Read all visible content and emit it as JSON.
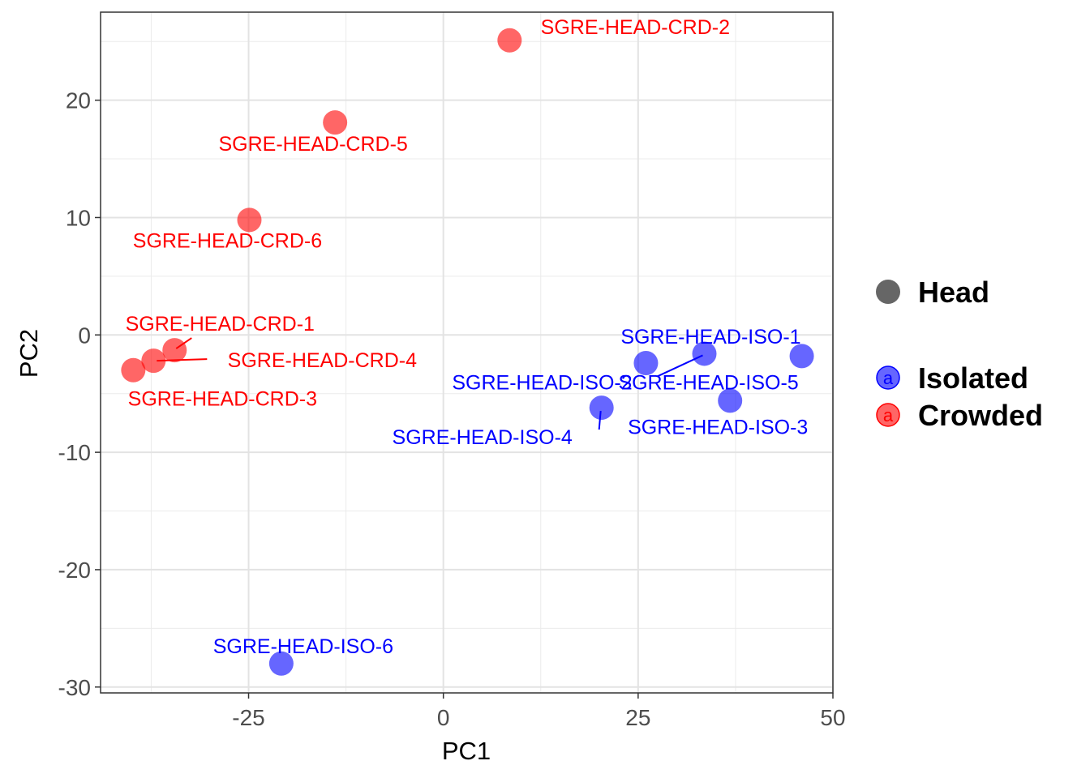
{
  "chart_data": {
    "type": "scatter",
    "xlabel": "PC1",
    "ylabel": "PC2",
    "xlim": [
      -44,
      50
    ],
    "ylim": [
      -30.5,
      27.5
    ],
    "x_ticks": [
      -25,
      0,
      25,
      50
    ],
    "y_ticks": [
      -30,
      -20,
      -10,
      0,
      10,
      20
    ],
    "grid": true,
    "legend_position": "right",
    "shape_legend": {
      "label": "Head",
      "color": "#666666"
    },
    "series": [
      {
        "name": "Isolated",
        "color": "#0000ff",
        "label_color": "#0000ff",
        "points": [
          {
            "label": "SGRE-HEAD-ISO-1",
            "x": 26.0,
            "y": -2.4
          },
          {
            "label": "SGRE-HEAD-ISO-2",
            "x": 33.5,
            "y": -1.6
          },
          {
            "label": "SGRE-HEAD-ISO-3",
            "x": 36.8,
            "y": -5.6
          },
          {
            "label": "SGRE-HEAD-ISO-4",
            "x": 20.3,
            "y": -6.2
          },
          {
            "label": "SGRE-HEAD-ISO-5",
            "x": 46.0,
            "y": -1.8
          },
          {
            "label": "SGRE-HEAD-ISO-6",
            "x": -20.8,
            "y": -28.0
          }
        ]
      },
      {
        "name": "Crowded",
        "color": "#ff0000",
        "label_color": "#ff0000",
        "points": [
          {
            "label": "SGRE-HEAD-CRD-1",
            "x": -34.5,
            "y": -1.3
          },
          {
            "label": "SGRE-HEAD-CRD-2",
            "x": 8.5,
            "y": 25.1
          },
          {
            "label": "SGRE-HEAD-CRD-3",
            "x": -39.8,
            "y": -3.0
          },
          {
            "label": "SGRE-HEAD-CRD-4",
            "x": -37.2,
            "y": -2.2
          },
          {
            "label": "SGRE-HEAD-CRD-5",
            "x": -13.9,
            "y": 18.1
          },
          {
            "label": "SGRE-HEAD-CRD-6",
            "x": -24.9,
            "y": 9.8
          }
        ]
      }
    ],
    "legend_glyph": "a"
  }
}
